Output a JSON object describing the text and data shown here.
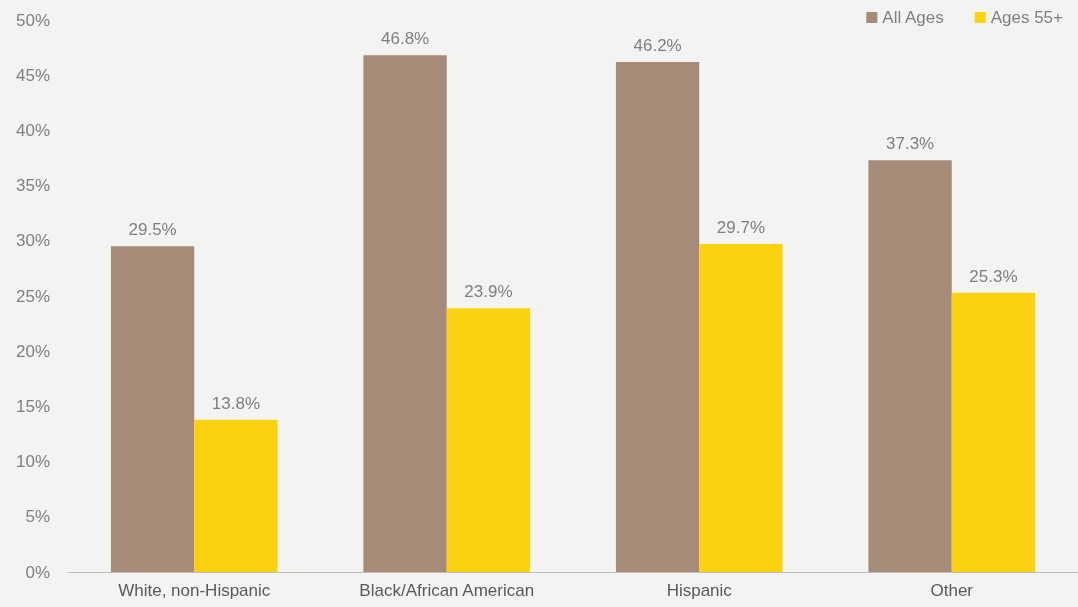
{
  "chart_data": {
    "type": "bar",
    "categories": [
      "White, non-Hispanic",
      "Black/African American",
      "Hispanic",
      "Other"
    ],
    "series": [
      {
        "name": "All Ages",
        "color": "#a58b78",
        "values": [
          29.5,
          46.8,
          46.2,
          37.3
        ],
        "value_labels": [
          "29.5%",
          "46.8%",
          "46.2%",
          "37.3%"
        ]
      },
      {
        "name": "Ages 55+",
        "color": "#fcd10f",
        "values": [
          13.8,
          23.9,
          29.7,
          25.3
        ],
        "value_labels": [
          "13.8%",
          "23.9%",
          "29.7%",
          "25.3%"
        ]
      }
    ],
    "ylim": [
      0,
      50
    ],
    "yticks": [
      {
        "value": 0,
        "label": "0%"
      },
      {
        "value": 5,
        "label": "5%"
      },
      {
        "value": 10,
        "label": "10%"
      },
      {
        "value": 15,
        "label": "15%"
      },
      {
        "value": 20,
        "label": "20%"
      },
      {
        "value": 25,
        "label": "25%"
      },
      {
        "value": 30,
        "label": "30%"
      },
      {
        "value": 35,
        "label": "35%"
      },
      {
        "value": 40,
        "label": "40%"
      },
      {
        "value": 45,
        "label": "45%"
      },
      {
        "value": 50,
        "label": "50%"
      }
    ],
    "grid": false,
    "legend": "top right"
  }
}
